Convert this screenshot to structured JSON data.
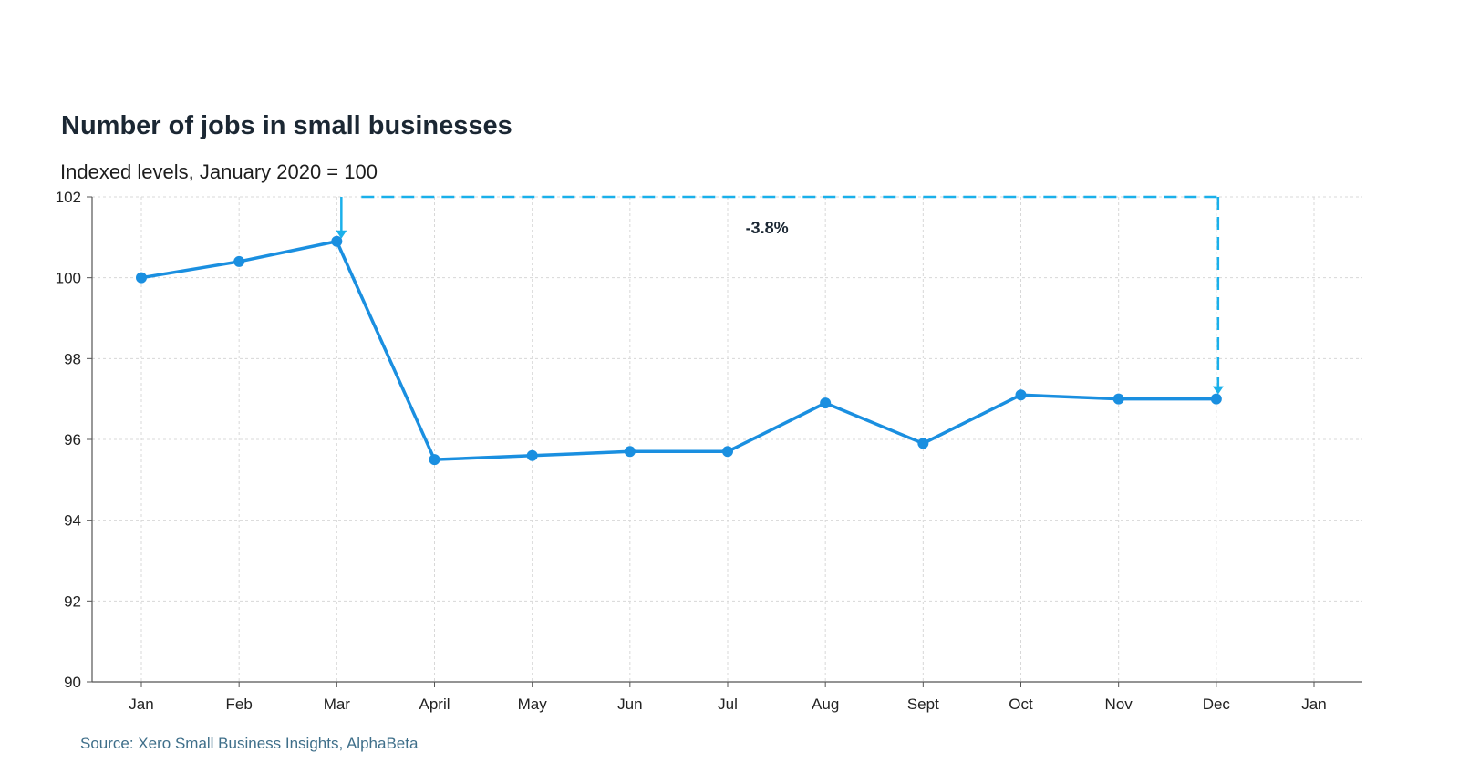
{
  "chart_data": {
    "type": "line",
    "title": "Number of jobs in small businesses",
    "subtitle": "Indexed levels, January 2020 = 100",
    "source": "Source: Xero Small Business Insights, AlphaBeta",
    "categories": [
      "Jan",
      "Feb",
      "Mar",
      "April",
      "May",
      "Jun",
      "Jul",
      "Aug",
      "Sept",
      "Oct",
      "Nov",
      "Dec",
      "Jan"
    ],
    "series": [
      {
        "values": [
          100.0,
          100.4,
          100.9,
          95.5,
          95.6,
          95.7,
          95.7,
          96.9,
          95.9,
          97.1,
          97.0,
          97.0,
          null
        ]
      }
    ],
    "ylim": [
      90,
      102
    ],
    "yticks": [
      90,
      92,
      94,
      96,
      98,
      100,
      102
    ],
    "grid": true,
    "annotation": {
      "text": "-3.8%",
      "from_category_index": 2,
      "to_category_index": 11
    },
    "colors": {
      "line": "#1a8fe0",
      "annotation": "#1ab0ea",
      "grid": "#d8d8d8",
      "axis": "#555555"
    }
  }
}
